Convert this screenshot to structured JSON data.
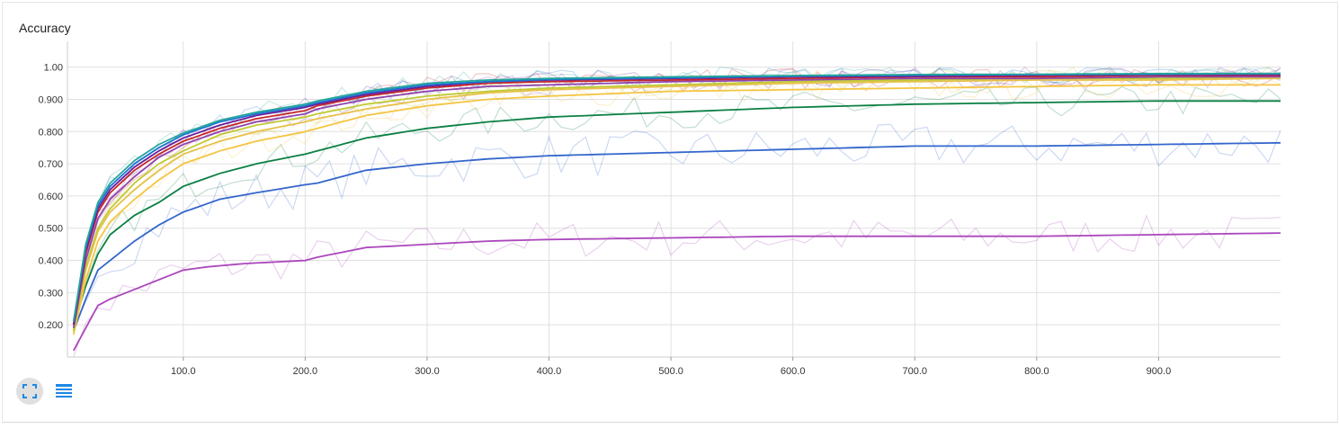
{
  "chart_data": {
    "type": "line",
    "title": "Accuracy",
    "xlim": [
      5,
      1000
    ],
    "ylim": [
      0.1,
      1.08
    ],
    "x_ticks": [
      100,
      200,
      300,
      400,
      500,
      600,
      700,
      800,
      900
    ],
    "x_tick_labels": [
      "100.0",
      "200.0",
      "300.0",
      "400.0",
      "500.0",
      "600.0",
      "700.0",
      "800.0",
      "900.0"
    ],
    "y_ticks": [
      0.2,
      0.3,
      0.4,
      0.5,
      0.6,
      0.7,
      0.8,
      0.9,
      1.0
    ],
    "y_tick_labels": [
      "0.200",
      "0.300",
      "0.400",
      "0.500",
      "0.600",
      "0.700",
      "0.800",
      "0.900",
      "1.00"
    ],
    "grid": true,
    "series": [
      {
        "color": "#ab47bc",
        "curve": [
          [
            10,
            0.12
          ],
          [
            20,
            0.19
          ],
          [
            30,
            0.26
          ],
          [
            40,
            0.28
          ],
          [
            60,
            0.31
          ],
          [
            80,
            0.34
          ],
          [
            100,
            0.37
          ],
          [
            120,
            0.38
          ],
          [
            150,
            0.39
          ],
          [
            200,
            0.4
          ],
          [
            210,
            0.41
          ],
          [
            250,
            0.44
          ],
          [
            300,
            0.45
          ],
          [
            350,
            0.46
          ],
          [
            400,
            0.465
          ],
          [
            500,
            0.47
          ],
          [
            600,
            0.475
          ],
          [
            700,
            0.475
          ],
          [
            800,
            0.475
          ],
          [
            900,
            0.48
          ],
          [
            1000,
            0.485
          ]
        ],
        "noise": 0.06
      },
      {
        "color": "#3366cc",
        "curve": [
          [
            10,
            0.18
          ],
          [
            20,
            0.28
          ],
          [
            30,
            0.37
          ],
          [
            40,
            0.4
          ],
          [
            60,
            0.46
          ],
          [
            80,
            0.51
          ],
          [
            100,
            0.55
          ],
          [
            130,
            0.59
          ],
          [
            160,
            0.61
          ],
          [
            200,
            0.635
          ],
          [
            210,
            0.64
          ],
          [
            250,
            0.68
          ],
          [
            300,
            0.7
          ],
          [
            350,
            0.715
          ],
          [
            400,
            0.725
          ],
          [
            500,
            0.735
          ],
          [
            600,
            0.745
          ],
          [
            700,
            0.755
          ],
          [
            800,
            0.755
          ],
          [
            900,
            0.76
          ],
          [
            1000,
            0.765
          ]
        ],
        "noise": 0.07
      },
      {
        "color": "#0b8043",
        "curve": [
          [
            10,
            0.2
          ],
          [
            20,
            0.32
          ],
          [
            30,
            0.42
          ],
          [
            40,
            0.48
          ],
          [
            60,
            0.54
          ],
          [
            80,
            0.58
          ],
          [
            100,
            0.63
          ],
          [
            130,
            0.67
          ],
          [
            160,
            0.7
          ],
          [
            200,
            0.73
          ],
          [
            210,
            0.74
          ],
          [
            250,
            0.78
          ],
          [
            300,
            0.81
          ],
          [
            350,
            0.83
          ],
          [
            400,
            0.845
          ],
          [
            500,
            0.86
          ],
          [
            600,
            0.875
          ],
          [
            700,
            0.885
          ],
          [
            800,
            0.89
          ],
          [
            900,
            0.895
          ],
          [
            1000,
            0.895
          ]
        ],
        "noise": 0.05
      },
      {
        "color": "#f4c542",
        "curve": [
          [
            10,
            0.17
          ],
          [
            20,
            0.34
          ],
          [
            30,
            0.46
          ],
          [
            40,
            0.52
          ],
          [
            60,
            0.59
          ],
          [
            80,
            0.65
          ],
          [
            100,
            0.7
          ],
          [
            130,
            0.74
          ],
          [
            160,
            0.77
          ],
          [
            200,
            0.8
          ],
          [
            210,
            0.81
          ],
          [
            250,
            0.85
          ],
          [
            300,
            0.88
          ],
          [
            350,
            0.9
          ],
          [
            400,
            0.91
          ],
          [
            500,
            0.925
          ],
          [
            600,
            0.93
          ],
          [
            700,
            0.935
          ],
          [
            800,
            0.94
          ],
          [
            900,
            0.945
          ],
          [
            1000,
            0.945
          ]
        ],
        "noise": 0.04
      },
      {
        "color": "#e8c04a",
        "curve": [
          [
            10,
            0.18
          ],
          [
            20,
            0.37
          ],
          [
            30,
            0.49
          ],
          [
            40,
            0.55
          ],
          [
            60,
            0.62
          ],
          [
            80,
            0.68
          ],
          [
            100,
            0.73
          ],
          [
            130,
            0.77
          ],
          [
            160,
            0.8
          ],
          [
            200,
            0.83
          ],
          [
            210,
            0.84
          ],
          [
            250,
            0.87
          ],
          [
            300,
            0.9
          ],
          [
            350,
            0.92
          ],
          [
            400,
            0.93
          ],
          [
            500,
            0.94
          ],
          [
            600,
            0.95
          ],
          [
            700,
            0.955
          ],
          [
            800,
            0.96
          ],
          [
            900,
            0.96
          ],
          [
            1000,
            0.965
          ]
        ],
        "noise": 0.04
      },
      {
        "color": "#c0ca33",
        "curve": [
          [
            10,
            0.18
          ],
          [
            20,
            0.38
          ],
          [
            30,
            0.5
          ],
          [
            40,
            0.56
          ],
          [
            60,
            0.64
          ],
          [
            80,
            0.7
          ],
          [
            100,
            0.74
          ],
          [
            130,
            0.79
          ],
          [
            160,
            0.82
          ],
          [
            200,
            0.845
          ],
          [
            210,
            0.855
          ],
          [
            250,
            0.885
          ],
          [
            300,
            0.91
          ],
          [
            350,
            0.925
          ],
          [
            400,
            0.935
          ],
          [
            500,
            0.945
          ],
          [
            600,
            0.955
          ],
          [
            700,
            0.96
          ],
          [
            800,
            0.965
          ],
          [
            900,
            0.965
          ],
          [
            1000,
            0.97
          ]
        ],
        "noise": 0.035
      },
      {
        "color": "#8e44ad",
        "curve": [
          [
            10,
            0.19
          ],
          [
            20,
            0.4
          ],
          [
            30,
            0.53
          ],
          [
            40,
            0.59
          ],
          [
            60,
            0.66
          ],
          [
            80,
            0.72
          ],
          [
            100,
            0.76
          ],
          [
            130,
            0.8
          ],
          [
            160,
            0.83
          ],
          [
            200,
            0.855
          ],
          [
            210,
            0.87
          ],
          [
            250,
            0.9
          ],
          [
            300,
            0.925
          ],
          [
            350,
            0.94
          ],
          [
            400,
            0.945
          ],
          [
            500,
            0.955
          ],
          [
            600,
            0.96
          ],
          [
            700,
            0.965
          ],
          [
            800,
            0.965
          ],
          [
            900,
            0.97
          ],
          [
            1000,
            0.97
          ]
        ],
        "noise": 0.035
      },
      {
        "color": "#c62828",
        "curve": [
          [
            10,
            0.2
          ],
          [
            20,
            0.42
          ],
          [
            30,
            0.55
          ],
          [
            40,
            0.61
          ],
          [
            60,
            0.68
          ],
          [
            80,
            0.73
          ],
          [
            100,
            0.77
          ],
          [
            130,
            0.81
          ],
          [
            160,
            0.84
          ],
          [
            200,
            0.865
          ],
          [
            210,
            0.88
          ],
          [
            250,
            0.91
          ],
          [
            300,
            0.935
          ],
          [
            350,
            0.95
          ],
          [
            400,
            0.955
          ],
          [
            500,
            0.96
          ],
          [
            600,
            0.965
          ],
          [
            700,
            0.97
          ],
          [
            800,
            0.97
          ],
          [
            900,
            0.975
          ],
          [
            1000,
            0.975
          ]
        ],
        "noise": 0.035
      },
      {
        "color": "#6a1b9a",
        "curve": [
          [
            10,
            0.2
          ],
          [
            20,
            0.43
          ],
          [
            30,
            0.56
          ],
          [
            40,
            0.62
          ],
          [
            60,
            0.69
          ],
          [
            80,
            0.74
          ],
          [
            100,
            0.78
          ],
          [
            130,
            0.82
          ],
          [
            160,
            0.85
          ],
          [
            200,
            0.875
          ],
          [
            210,
            0.885
          ],
          [
            250,
            0.915
          ],
          [
            300,
            0.94
          ],
          [
            350,
            0.955
          ],
          [
            400,
            0.96
          ],
          [
            500,
            0.965
          ],
          [
            600,
            0.97
          ],
          [
            700,
            0.972
          ],
          [
            800,
            0.975
          ],
          [
            900,
            0.977
          ],
          [
            1000,
            0.977
          ]
        ],
        "noise": 0.03
      },
      {
        "color": "#1976d2",
        "curve": [
          [
            10,
            0.21
          ],
          [
            20,
            0.44
          ],
          [
            30,
            0.57
          ],
          [
            40,
            0.63
          ],
          [
            60,
            0.7
          ],
          [
            80,
            0.75
          ],
          [
            100,
            0.79
          ],
          [
            130,
            0.83
          ],
          [
            160,
            0.855
          ],
          [
            200,
            0.88
          ],
          [
            210,
            0.89
          ],
          [
            250,
            0.92
          ],
          [
            300,
            0.945
          ],
          [
            350,
            0.955
          ],
          [
            400,
            0.962
          ],
          [
            500,
            0.967
          ],
          [
            600,
            0.972
          ],
          [
            700,
            0.975
          ],
          [
            800,
            0.977
          ],
          [
            900,
            0.978
          ],
          [
            1000,
            0.98
          ]
        ],
        "noise": 0.03
      },
      {
        "color": "#26a69a",
        "curve": [
          [
            10,
            0.21
          ],
          [
            20,
            0.45
          ],
          [
            30,
            0.58
          ],
          [
            40,
            0.64
          ],
          [
            60,
            0.71
          ],
          [
            80,
            0.76
          ],
          [
            100,
            0.795
          ],
          [
            130,
            0.835
          ],
          [
            160,
            0.86
          ],
          [
            200,
            0.885
          ],
          [
            210,
            0.895
          ],
          [
            250,
            0.925
          ],
          [
            300,
            0.95
          ],
          [
            350,
            0.96
          ],
          [
            400,
            0.965
          ],
          [
            500,
            0.97
          ],
          [
            600,
            0.974
          ],
          [
            700,
            0.977
          ],
          [
            800,
            0.978
          ],
          [
            900,
            0.98
          ],
          [
            1000,
            0.98
          ]
        ],
        "noise": 0.03
      }
    ]
  },
  "toolbar": {
    "expand_icon": "fullscreen-icon",
    "list_icon": "list-icon",
    "accent": "#1f88e5"
  }
}
